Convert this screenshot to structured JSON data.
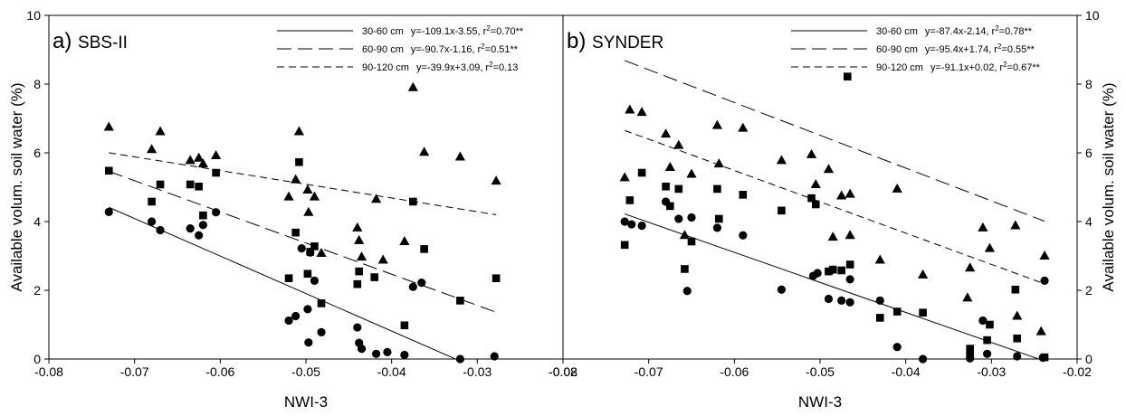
{
  "chart_data": [
    {
      "type": "scatter",
      "panel_letter": "a)",
      "title": "SBS-II",
      "xlabel": "NWI-3",
      "ylabel": "Available volum. soil water (%)",
      "xlim": [
        -0.08,
        -0.02
      ],
      "ylim": [
        0,
        10
      ],
      "xticks": [
        "-0.08",
        "-0.07",
        "-0.06",
        "-0.05",
        "-0.04",
        "-0.03",
        "-0.02"
      ],
      "yticks": [
        "0",
        "2",
        "4",
        "6",
        "8",
        "10"
      ],
      "ytick_side": "left",
      "grid": false,
      "legend_position": "top-right",
      "series": [
        {
          "name": "30-60 cm",
          "equation": "y=-109.1x-3.55, r",
          "r2": "=0.70**",
          "marker": "circle",
          "line_style": "solid",
          "fit": {
            "slope": -109.1,
            "intercept": -3.55
          },
          "points": [
            [
              -0.073,
              4.28
            ],
            [
              -0.068,
              4.0
            ],
            [
              -0.067,
              3.75
            ],
            [
              -0.0635,
              3.8
            ],
            [
              -0.0625,
              3.6
            ],
            [
              -0.062,
              3.9
            ],
            [
              -0.0605,
              4.27
            ],
            [
              -0.052,
              1.12
            ],
            [
              -0.0512,
              1.25
            ],
            [
              -0.0505,
              3.22
            ],
            [
              -0.0498,
              1.45
            ],
            [
              -0.0497,
              0.48
            ],
            [
              -0.0495,
              3.1
            ],
            [
              -0.049,
              2.28
            ],
            [
              -0.0482,
              0.78
            ],
            [
              -0.044,
              0.92
            ],
            [
              -0.0438,
              0.47
            ],
            [
              -0.0435,
              0.3
            ],
            [
              -0.0418,
              0.15
            ],
            [
              -0.0405,
              0.2
            ],
            [
              -0.0385,
              0.12
            ],
            [
              -0.0375,
              2.1
            ],
            [
              -0.0365,
              2.22
            ],
            [
              -0.032,
              0.0
            ],
            [
              -0.028,
              0.08
            ]
          ]
        },
        {
          "name": "60-90 cm",
          "equation": "y=-90.7x-1.16, r",
          "r2": "=0.51**",
          "marker": "square",
          "line_style": "long-dash",
          "fit": {
            "slope": -90.7,
            "intercept": -1.16
          },
          "points": [
            [
              -0.073,
              5.48
            ],
            [
              -0.068,
              4.58
            ],
            [
              -0.067,
              5.08
            ],
            [
              -0.0635,
              5.08
            ],
            [
              -0.0625,
              5.02
            ],
            [
              -0.062,
              4.18
            ],
            [
              -0.0605,
              5.42
            ],
            [
              -0.052,
              2.35
            ],
            [
              -0.0512,
              3.68
            ],
            [
              -0.0508,
              5.73
            ],
            [
              -0.0498,
              2.48
            ],
            [
              -0.0495,
              3.12
            ],
            [
              -0.049,
              3.28
            ],
            [
              -0.0482,
              1.62
            ],
            [
              -0.044,
              2.18
            ],
            [
              -0.0438,
              2.55
            ],
            [
              -0.042,
              2.38
            ],
            [
              -0.0385,
              0.98
            ],
            [
              -0.0375,
              4.58
            ],
            [
              -0.0362,
              3.2
            ],
            [
              -0.032,
              1.7
            ],
            [
              -0.0278,
              2.35
            ]
          ]
        },
        {
          "name": "90-120 cm",
          "equation": "y=-39.9x+3.09, r",
          "r2": "=0.13",
          "marker": "triangle",
          "line_style": "short-dash",
          "fit": {
            "slope": -39.9,
            "intercept": 3.09
          },
          "points": [
            [
              -0.073,
              6.75
            ],
            [
              -0.068,
              6.1
            ],
            [
              -0.067,
              6.62
            ],
            [
              -0.0635,
              5.78
            ],
            [
              -0.0625,
              5.85
            ],
            [
              -0.062,
              5.68
            ],
            [
              -0.0605,
              5.92
            ],
            [
              -0.052,
              4.72
            ],
            [
              -0.0512,
              5.22
            ],
            [
              -0.0508,
              6.62
            ],
            [
              -0.0498,
              4.92
            ],
            [
              -0.0497,
              4.27
            ],
            [
              -0.049,
              4.72
            ],
            [
              -0.0482,
              3.08
            ],
            [
              -0.044,
              3.82
            ],
            [
              -0.0438,
              3.45
            ],
            [
              -0.0435,
              2.97
            ],
            [
              -0.0418,
              4.65
            ],
            [
              -0.041,
              2.88
            ],
            [
              -0.0385,
              3.42
            ],
            [
              -0.0375,
              7.9
            ],
            [
              -0.0362,
              6.02
            ],
            [
              -0.032,
              5.88
            ],
            [
              -0.0278,
              5.18
            ]
          ]
        }
      ]
    },
    {
      "type": "scatter",
      "panel_letter": "b)",
      "title": "SYNDER",
      "xlabel": "NWI-3",
      "ylabel": "Available volum. soil water (%)",
      "xlim": [
        -0.08,
        -0.02
      ],
      "ylim": [
        0,
        10
      ],
      "xticks": [
        "-0.08",
        "-0.07",
        "-0.06",
        "-0.05",
        "-0.04",
        "-0.03",
        "-0.02"
      ],
      "yticks": [
        "0",
        "2",
        "4",
        "6",
        "8",
        "10"
      ],
      "ytick_side": "right",
      "grid": false,
      "legend_position": "top-right",
      "series": [
        {
          "name": "30-60 cm",
          "equation": "y=-87.4x-2.14, r",
          "r2": "=0.78**",
          "marker": "circle",
          "line_style": "solid",
          "fit": {
            "slope": -87.4,
            "intercept": -2.14
          },
          "points": [
            [
              -0.0728,
              4.0
            ],
            [
              -0.072,
              3.92
            ],
            [
              -0.0708,
              3.88
            ],
            [
              -0.068,
              4.58
            ],
            [
              -0.0665,
              4.08
            ],
            [
              -0.0655,
              1.98
            ],
            [
              -0.065,
              4.12
            ],
            [
              -0.062,
              3.82
            ],
            [
              -0.059,
              3.6
            ],
            [
              -0.0545,
              2.02
            ],
            [
              -0.0508,
              2.42
            ],
            [
              -0.0503,
              2.5
            ],
            [
              -0.049,
              1.75
            ],
            [
              -0.0485,
              2.6
            ],
            [
              -0.0475,
              1.7
            ],
            [
              -0.0465,
              1.65
            ],
            [
              -0.0465,
              2.32
            ],
            [
              -0.043,
              1.7
            ],
            [
              -0.041,
              0.35
            ],
            [
              -0.038,
              0.0
            ],
            [
              -0.0325,
              0.02
            ],
            [
              -0.031,
              1.12
            ],
            [
              -0.0305,
              0.15
            ],
            [
              -0.027,
              0.08
            ],
            [
              -0.024,
              0.04
            ],
            [
              -0.0238,
              2.28
            ]
          ]
        },
        {
          "name": "60-90 cm",
          "equation": "y=-95.4x+1.74, r",
          "r2": "=0.55**",
          "marker": "square",
          "line_style": "long-dash",
          "fit": {
            "slope": -95.4,
            "intercept": 1.74
          },
          "points": [
            [
              -0.0728,
              3.32
            ],
            [
              -0.0722,
              4.62
            ],
            [
              -0.0708,
              5.42
            ],
            [
              -0.068,
              5.02
            ],
            [
              -0.0675,
              4.45
            ],
            [
              -0.0665,
              4.95
            ],
            [
              -0.0658,
              2.62
            ],
            [
              -0.065,
              3.42
            ],
            [
              -0.062,
              4.95
            ],
            [
              -0.0618,
              4.08
            ],
            [
              -0.059,
              4.78
            ],
            [
              -0.0545,
              4.32
            ],
            [
              -0.051,
              4.68
            ],
            [
              -0.0505,
              4.5
            ],
            [
              -0.049,
              2.55
            ],
            [
              -0.0485,
              2.6
            ],
            [
              -0.0475,
              2.58
            ],
            [
              -0.0468,
              8.22
            ],
            [
              -0.0465,
              2.75
            ],
            [
              -0.043,
              1.2
            ],
            [
              -0.041,
              1.38
            ],
            [
              -0.038,
              1.35
            ],
            [
              -0.0325,
              0.3
            ],
            [
              -0.0325,
              0.1
            ],
            [
              -0.0305,
              0.55
            ],
            [
              -0.0302,
              1.0
            ],
            [
              -0.0272,
              2.02
            ],
            [
              -0.027,
              0.6
            ],
            [
              -0.0238,
              0.05
            ]
          ]
        },
        {
          "name": "90-120 cm",
          "equation": "y=-91.1x+0.02, r",
          "r2": "=0.67**",
          "marker": "triangle",
          "line_style": "short-dash",
          "fit": {
            "slope": -91.1,
            "intercept": 0.02
          },
          "points": [
            [
              -0.0728,
              5.28
            ],
            [
              -0.0722,
              7.25
            ],
            [
              -0.0708,
              7.18
            ],
            [
              -0.068,
              6.55
            ],
            [
              -0.0675,
              5.58
            ],
            [
              -0.0665,
              6.22
            ],
            [
              -0.0658,
              3.6
            ],
            [
              -0.065,
              5.38
            ],
            [
              -0.062,
              6.8
            ],
            [
              -0.0618,
              5.68
            ],
            [
              -0.059,
              6.72
            ],
            [
              -0.0545,
              5.78
            ],
            [
              -0.051,
              5.95
            ],
            [
              -0.0505,
              5.08
            ],
            [
              -0.049,
              5.52
            ],
            [
              -0.0485,
              3.55
            ],
            [
              -0.0475,
              4.75
            ],
            [
              -0.0465,
              4.8
            ],
            [
              -0.0465,
              3.6
            ],
            [
              -0.043,
              2.88
            ],
            [
              -0.041,
              4.95
            ],
            [
              -0.038,
              2.45
            ],
            [
              -0.0328,
              1.78
            ],
            [
              -0.0325,
              2.65
            ],
            [
              -0.031,
              3.82
            ],
            [
              -0.0302,
              3.22
            ],
            [
              -0.0272,
              3.88
            ],
            [
              -0.027,
              1.25
            ],
            [
              -0.0238,
              3.0
            ],
            [
              -0.0242,
              0.8
            ]
          ]
        }
      ]
    }
  ]
}
